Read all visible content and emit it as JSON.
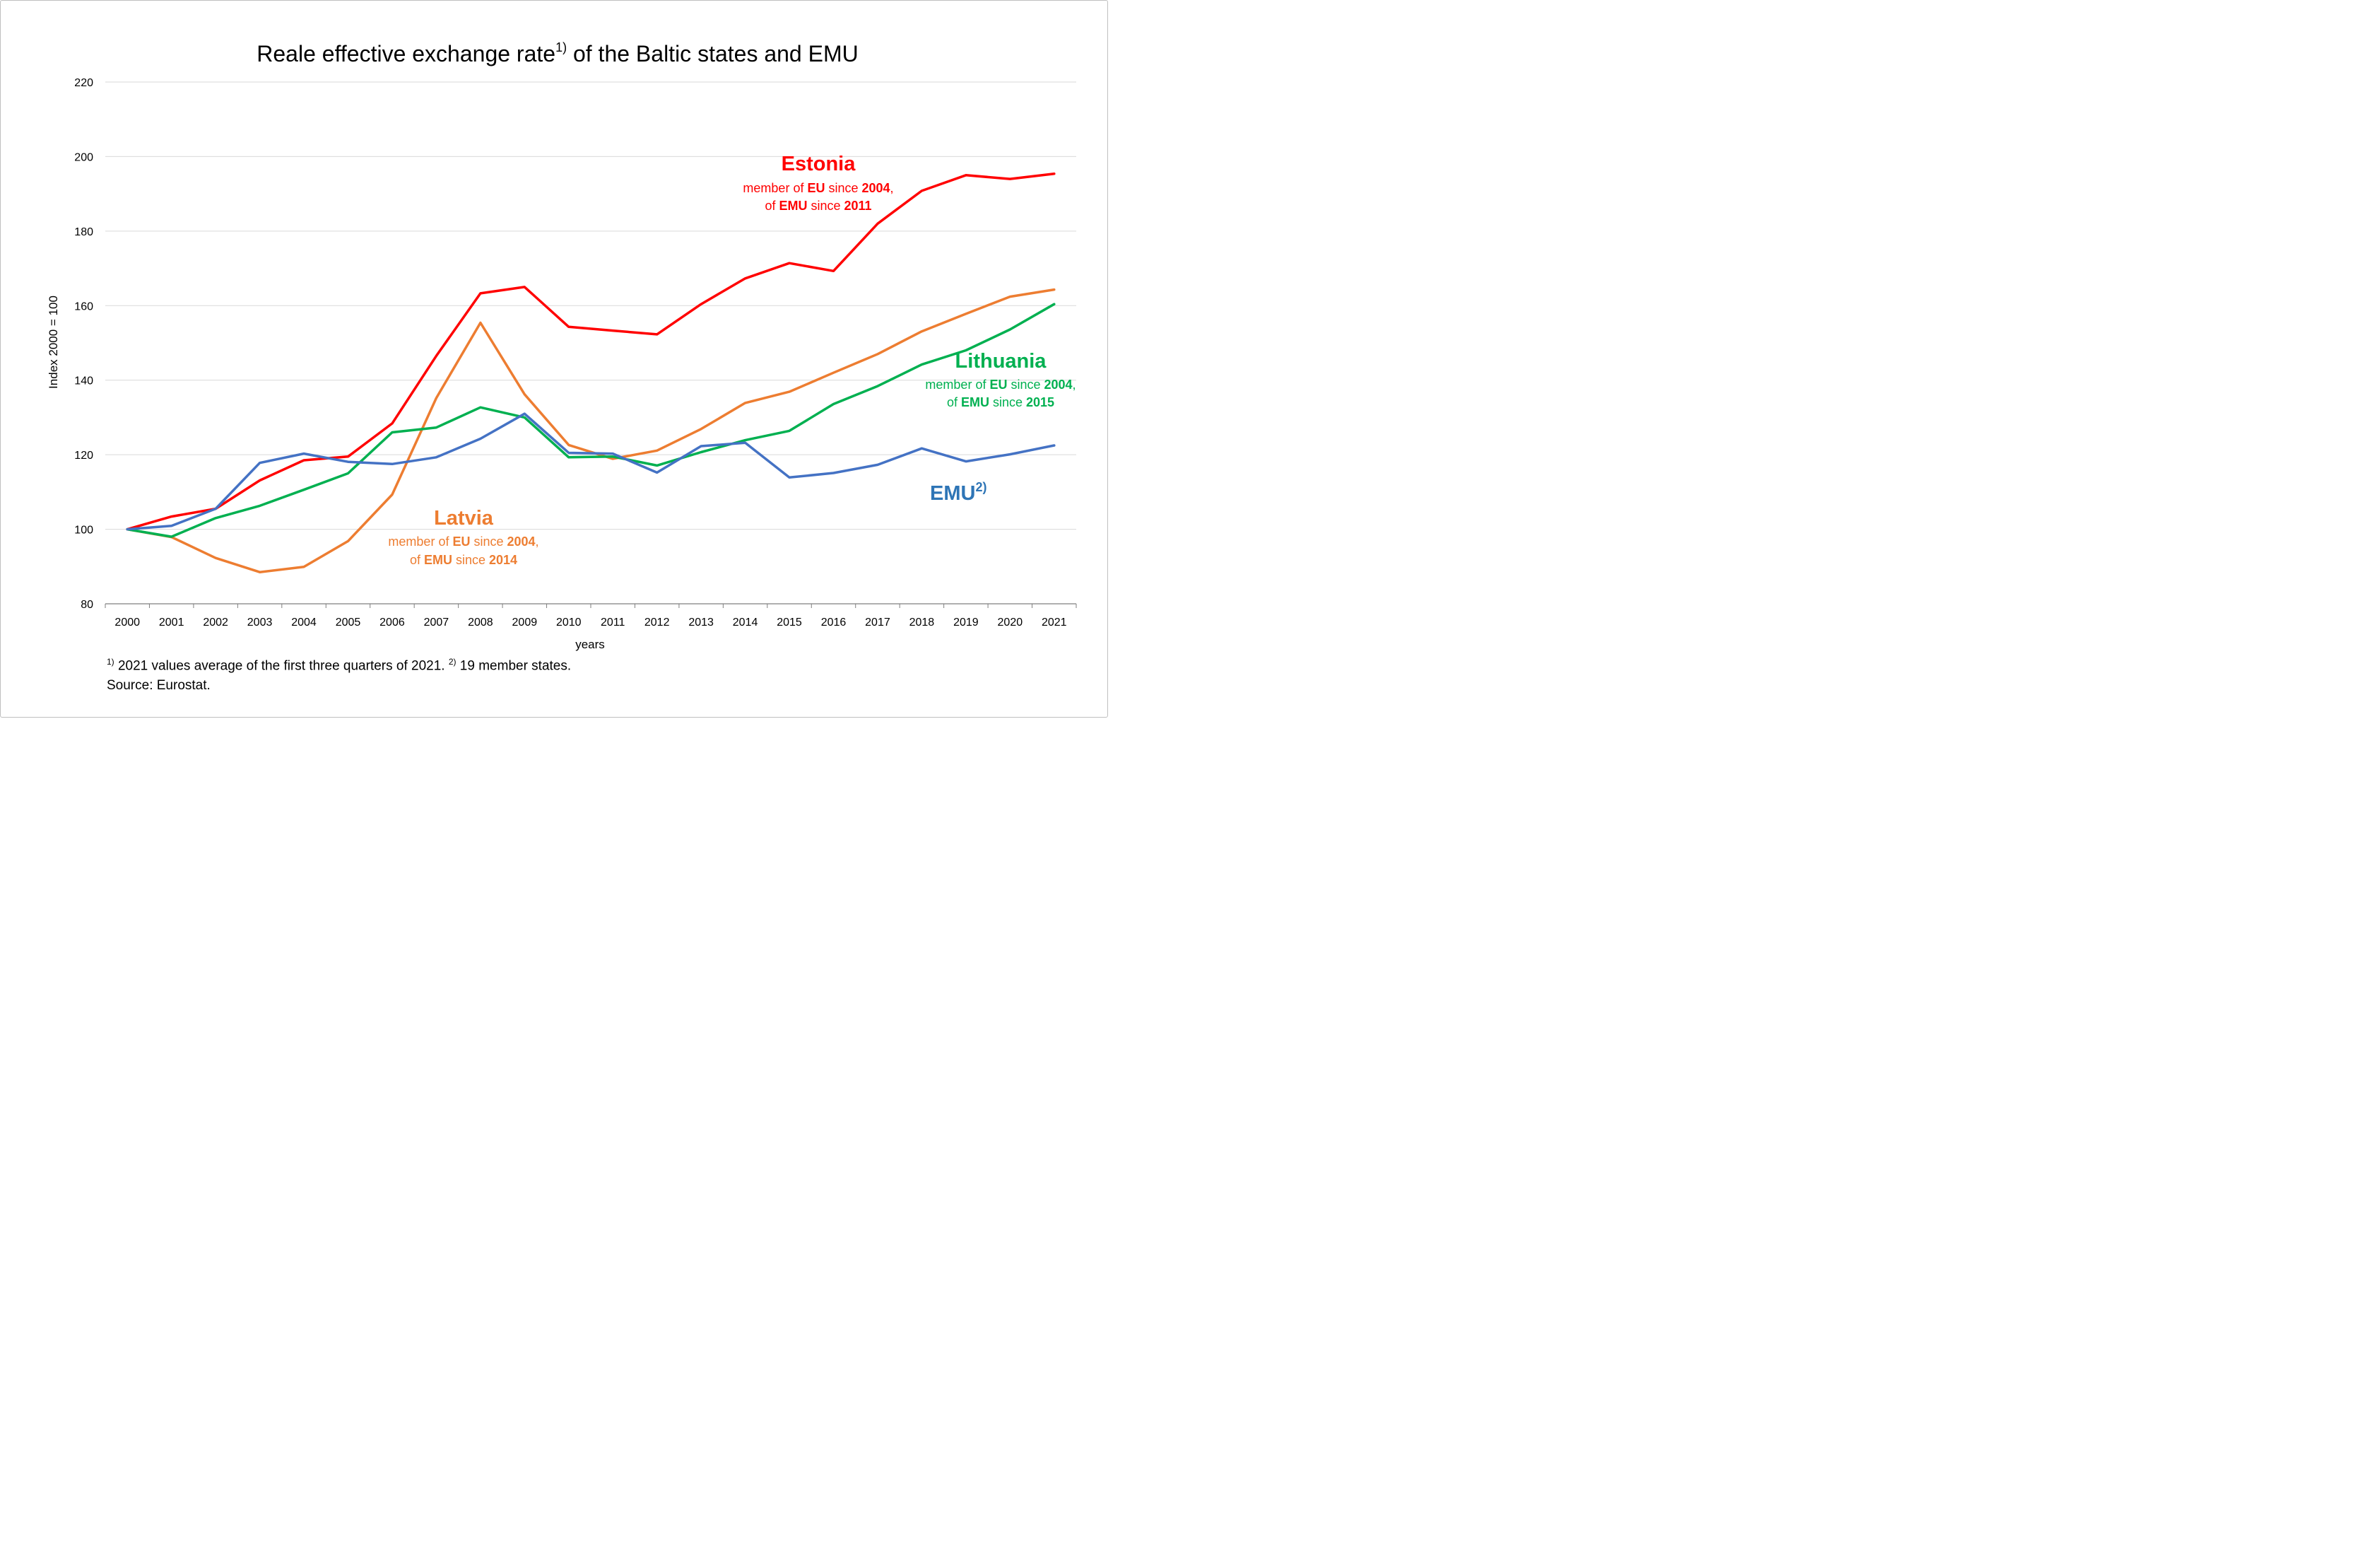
{
  "chart_data": {
    "type": "line",
    "title": "Reale effective exchange rate",
    "title_sup": "1)",
    "title_rest": " of the Baltic states and EMU",
    "xlabel": "years",
    "ylabel": "Index 2000 = 100",
    "ylim": [
      80,
      220
    ],
    "yticks": [
      80,
      100,
      120,
      140,
      160,
      180,
      200,
      220
    ],
    "grid": true,
    "x": [
      "2000",
      "2001",
      "2002",
      "2003",
      "2004",
      "2005",
      "2006",
      "2007",
      "2008",
      "2009",
      "2010",
      "2011",
      "2012",
      "2013",
      "2014",
      "2015",
      "2016",
      "2017",
      "2018",
      "2019",
      "2020",
      "2021"
    ],
    "series": [
      {
        "name": "Estonia",
        "color": "#ff0000",
        "values": [
          100,
          103.4,
          105.5,
          113.1,
          118.5,
          119.5,
          128.4,
          146.5,
          163.3,
          165.0,
          154.3,
          153.3,
          152.3,
          160.4,
          167.3,
          171.4,
          169.3,
          182.0,
          190.8,
          195.0,
          194.0,
          195.4
        ]
      },
      {
        "name": "Latvia",
        "color": "#ed7d31",
        "values": [
          100,
          97.9,
          92.3,
          88.5,
          89.9,
          96.8,
          109.3,
          135.2,
          155.4,
          136.2,
          122.6,
          118.9,
          121.1,
          126.9,
          133.9,
          136.9,
          142.0,
          147.0,
          153.1,
          157.8,
          162.4,
          164.3
        ]
      },
      {
        "name": "Lithuania",
        "color": "#00b050",
        "values": [
          100,
          98.0,
          103.0,
          106.3,
          110.6,
          115.0,
          126.0,
          127.3,
          132.7,
          130.0,
          119.3,
          119.5,
          117.1,
          120.7,
          123.9,
          126.4,
          133.6,
          138.4,
          144.2,
          148.0,
          153.6,
          160.4
        ]
      },
      {
        "name": "EMU",
        "color": "#4472c4",
        "values": [
          100,
          100.9,
          105.5,
          117.8,
          120.3,
          118.1,
          117.5,
          119.3,
          124.3,
          131.0,
          120.5,
          120.3,
          115.2,
          122.3,
          123.2,
          113.9,
          115.1,
          117.3,
          121.7,
          118.2,
          120.1,
          122.5
        ]
      }
    ],
    "annotations": {
      "estonia": {
        "name": "Estonia",
        "line1_a": "member of ",
        "line1_b": "EU",
        "line1_c": " since ",
        "line1_d": "2004",
        "line1_e": ",",
        "line2_a": "of ",
        "line2_b": "EMU",
        "line2_c": " since ",
        "line2_d": "2011"
      },
      "latvia": {
        "name": "Latvia",
        "line1_a": "member of ",
        "line1_b": "EU",
        "line1_c": " since ",
        "line1_d": "2004",
        "line1_e": ",",
        "line2_a": "of ",
        "line2_b": "EMU",
        "line2_c": " since ",
        "line2_d": "2014"
      },
      "lithuania": {
        "name": "Lithuania",
        "line1_a": "member of ",
        "line1_b": "EU",
        "line1_c": " since ",
        "line1_d": "2004",
        "line1_e": ",",
        "line2_a": "of ",
        "line2_b": "EMU",
        "line2_c": " since ",
        "line2_d": "2015"
      },
      "emu": {
        "name": "EMU",
        "sup": "2)"
      }
    }
  },
  "footnotes": {
    "note1_sup": "1)",
    "note1_text": " 2021 values average of the first three quarters of 2021. ",
    "note2_sup": "2)",
    "note2_text": " 19 member states.",
    "source": "Source: Eurostat."
  }
}
